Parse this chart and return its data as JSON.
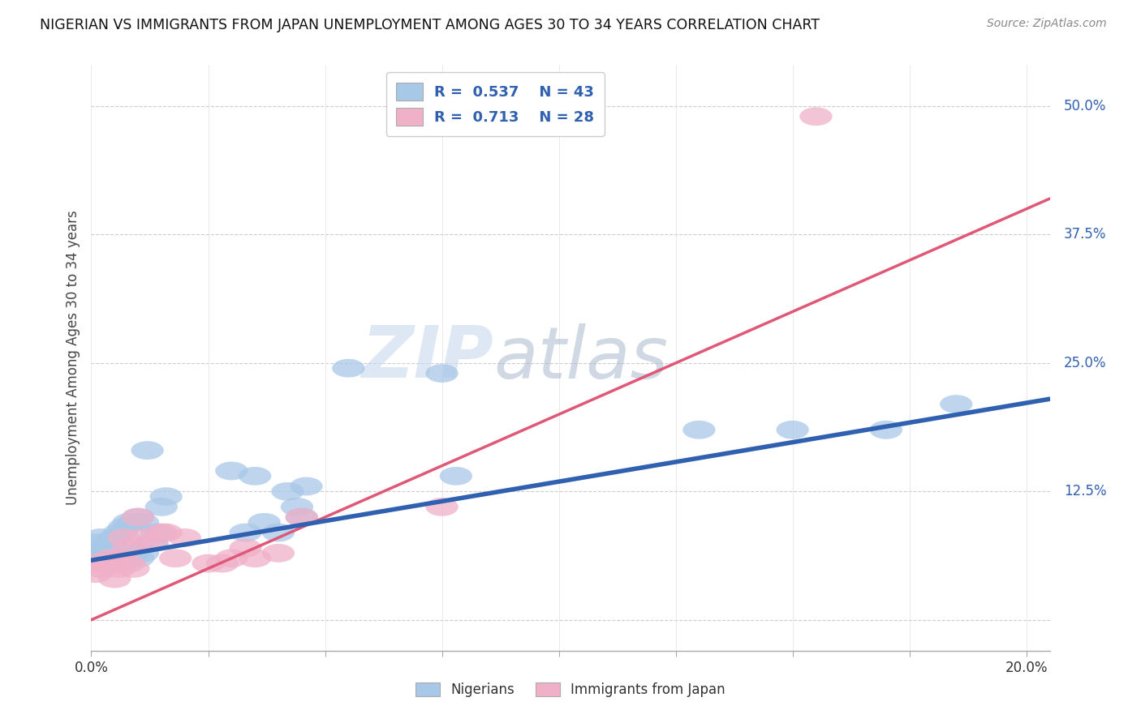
{
  "title": "NIGERIAN VS IMMIGRANTS FROM JAPAN UNEMPLOYMENT AMONG AGES 30 TO 34 YEARS CORRELATION CHART",
  "source": "Source: ZipAtlas.com",
  "ylabel": "Unemployment Among Ages 30 to 34 years",
  "xlim": [
    0.0,
    0.205
  ],
  "ylim": [
    -0.03,
    0.54
  ],
  "xtick_positions": [
    0.0,
    0.025,
    0.05,
    0.075,
    0.1,
    0.125,
    0.15,
    0.175,
    0.2
  ],
  "ytick_positions": [
    0.0,
    0.125,
    0.25,
    0.375,
    0.5
  ],
  "yticklabels": [
    "",
    "12.5%",
    "25.0%",
    "37.5%",
    "50.0%"
  ],
  "blue_color": "#A8C8E8",
  "pink_color": "#F0B0C8",
  "blue_line_color": "#3060B0",
  "pink_line_color": "#E05878",
  "legend_text_color": "#3060B0",
  "watermark_zip": "ZIP",
  "watermark_atlas": "atlas",
  "blue_scatter_x": [
    0.001,
    0.001,
    0.002,
    0.002,
    0.003,
    0.003,
    0.004,
    0.004,
    0.005,
    0.005,
    0.006,
    0.006,
    0.007,
    0.007,
    0.008,
    0.008,
    0.009,
    0.009,
    0.01,
    0.01,
    0.011,
    0.011,
    0.012,
    0.013,
    0.014,
    0.015,
    0.016,
    0.03,
    0.033,
    0.035,
    0.037,
    0.04,
    0.042,
    0.044,
    0.046,
    0.075,
    0.078,
    0.045,
    0.13,
    0.15,
    0.17,
    0.185,
    0.055
  ],
  "blue_scatter_y": [
    0.065,
    0.075,
    0.06,
    0.08,
    0.065,
    0.07,
    0.06,
    0.075,
    0.065,
    0.08,
    0.06,
    0.085,
    0.065,
    0.09,
    0.06,
    0.095,
    0.065,
    0.095,
    0.06,
    0.1,
    0.065,
    0.095,
    0.165,
    0.075,
    0.085,
    0.11,
    0.12,
    0.145,
    0.085,
    0.14,
    0.095,
    0.085,
    0.125,
    0.11,
    0.13,
    0.24,
    0.14,
    0.1,
    0.185,
    0.185,
    0.185,
    0.21,
    0.245
  ],
  "pink_scatter_x": [
    0.001,
    0.001,
    0.002,
    0.003,
    0.004,
    0.005,
    0.006,
    0.006,
    0.007,
    0.008,
    0.008,
    0.009,
    0.01,
    0.011,
    0.013,
    0.015,
    0.016,
    0.018,
    0.02,
    0.025,
    0.028,
    0.03,
    0.033,
    0.035,
    0.04,
    0.045,
    0.075,
    0.155
  ],
  "pink_scatter_y": [
    0.055,
    0.045,
    0.05,
    0.055,
    0.06,
    0.04,
    0.05,
    0.06,
    0.08,
    0.055,
    0.07,
    0.05,
    0.1,
    0.08,
    0.075,
    0.085,
    0.085,
    0.06,
    0.08,
    0.055,
    0.055,
    0.06,
    0.07,
    0.06,
    0.065,
    0.1,
    0.11,
    0.49
  ],
  "blue_trend_x": [
    0.0,
    0.205
  ],
  "blue_trend_y": [
    0.058,
    0.215
  ],
  "pink_trend_x": [
    0.0,
    0.205
  ],
  "pink_trend_y": [
    0.0,
    0.41
  ],
  "legend_R_blue": "0.537",
  "legend_N_blue": "43",
  "legend_R_pink": "0.713",
  "legend_N_pink": "28"
}
